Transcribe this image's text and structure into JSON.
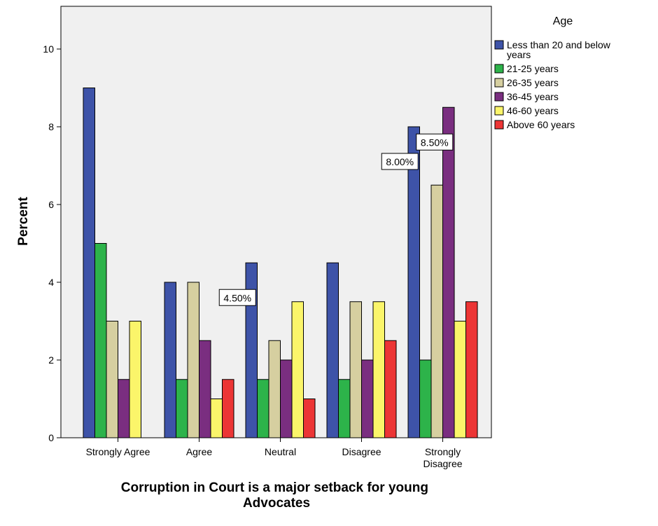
{
  "chart_data": {
    "type": "bar",
    "title": "",
    "xlabel_lines": [
      "Corruption in Court is a major setback for young",
      "Advocates"
    ],
    "ylabel": "Percent",
    "ylim": [
      0,
      11
    ],
    "yticks": [
      0,
      2,
      4,
      6,
      8,
      10
    ],
    "grid": false,
    "legend_position": "right",
    "legend_title": "Age",
    "categories": [
      [
        "Strongly Agree"
      ],
      [
        "Agree"
      ],
      [
        "Neutral"
      ],
      [
        "Disagree"
      ],
      [
        "Strongly",
        "Disagree"
      ]
    ],
    "series": [
      {
        "name_lines": [
          "Less than 20 and below",
          "years"
        ],
        "color": "#3e53a8",
        "values": [
          9,
          4,
          4.5,
          4.5,
          8
        ]
      },
      {
        "name_lines": [
          "21-25 years"
        ],
        "color": "#2db34a",
        "values": [
          5,
          1.5,
          1.5,
          1.5,
          2
        ]
      },
      {
        "name_lines": [
          "26-35 years"
        ],
        "color": "#d6cfa0",
        "values": [
          3,
          4,
          2.5,
          3.5,
          6.5
        ]
      },
      {
        "name_lines": [
          "36-45 years"
        ],
        "color": "#7a2e80",
        "values": [
          1.5,
          2.5,
          2,
          2,
          8.5
        ]
      },
      {
        "name_lines": [
          "46-60 years"
        ],
        "color": "#fbf56a",
        "values": [
          3,
          1,
          3.5,
          3.5,
          3
        ]
      },
      {
        "name_lines": [
          "Above 60 years"
        ],
        "color": "#ec3535",
        "values": [
          0,
          1.5,
          1,
          2.5,
          3.5
        ]
      }
    ],
    "annotations": [
      {
        "text": "4.50%",
        "category_index": 2,
        "series_index": 0
      },
      {
        "text": "8.00%",
        "category_index": 4,
        "series_index": 0
      },
      {
        "text": "8.50%",
        "category_index": 4,
        "series_index": 3
      }
    ]
  }
}
